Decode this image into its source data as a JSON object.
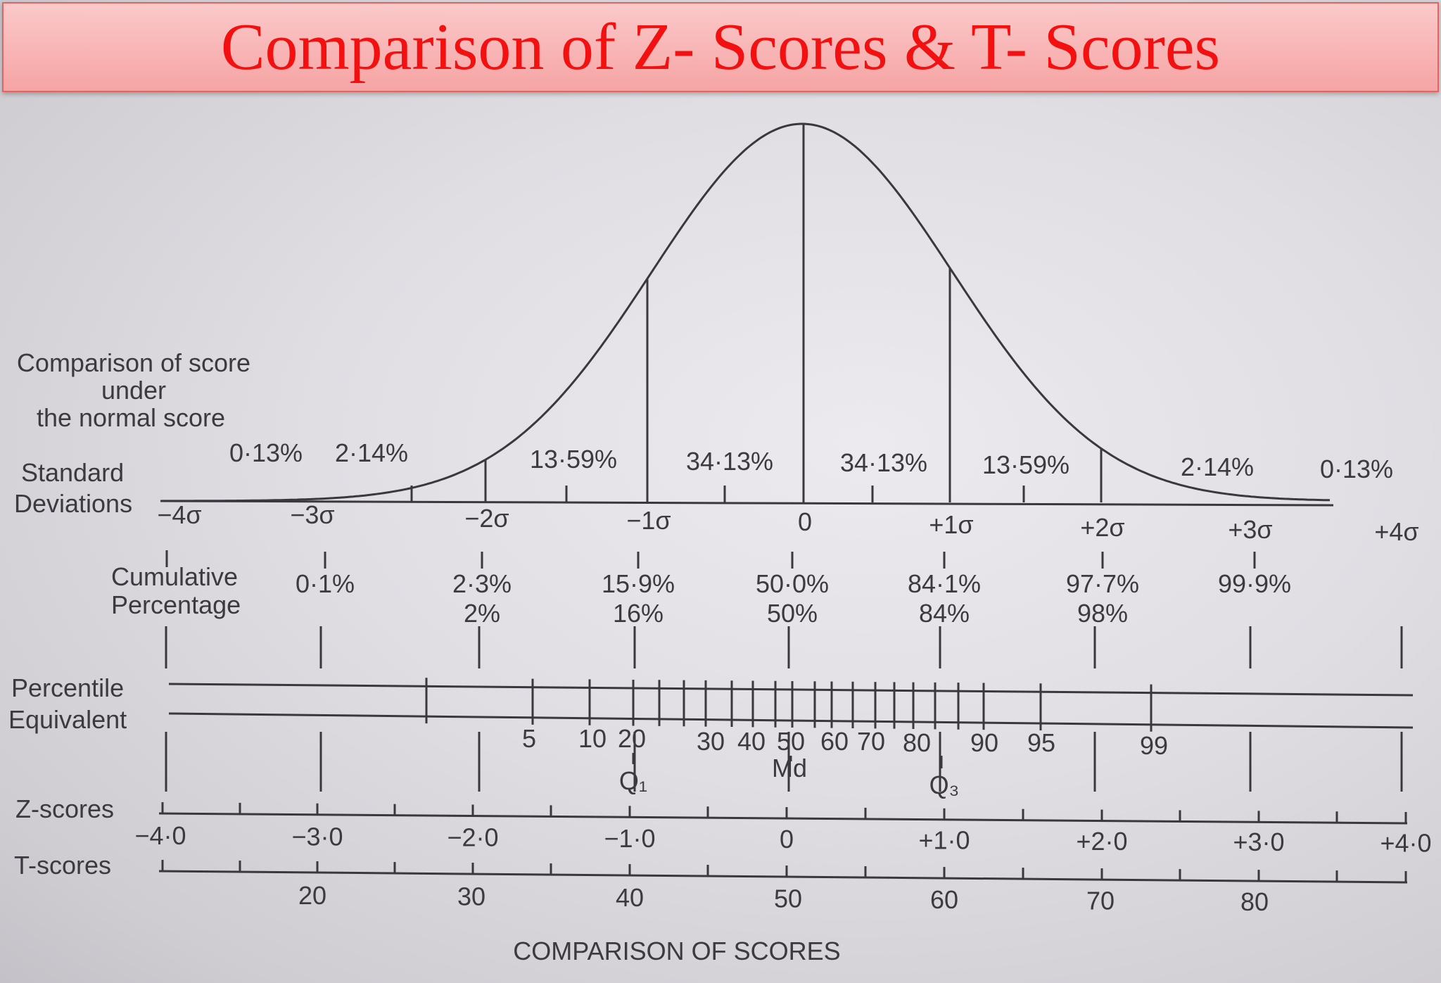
{
  "banner": {
    "title": "Comparison of Z- Scores & T- Scores"
  },
  "diagram": {
    "heading_lines": [
      "Comparison of score",
      "under",
      "the normal score"
    ],
    "row_labels": {
      "sd_line1": "Standard",
      "sd_line2": "Deviations",
      "cum_line1": "Cumulative",
      "cum_line2": "Percentage",
      "pct_line1": "Percentile",
      "pct_line2": "Equivalent",
      "z": "Z-scores",
      "t": "T-scores"
    },
    "area_percentages": [
      "0·13%",
      "2·14%",
      "13·59%",
      "34·13%",
      "34·13%",
      "13·59%",
      "2·14%",
      "0·13%"
    ],
    "sigma_labels": [
      "−4σ",
      "−3σ",
      "−2σ",
      "−1σ",
      "0",
      "+1σ",
      "+2σ",
      "+3σ",
      "+4σ"
    ],
    "cumulative": [
      {
        "value": "0·1%",
        "rounded": ""
      },
      {
        "value": "2·3%",
        "rounded": "2%"
      },
      {
        "value": "15·9%",
        "rounded": "16%"
      },
      {
        "value": "50·0%",
        "rounded": "50%"
      },
      {
        "value": "84·1%",
        "rounded": "84%"
      },
      {
        "value": "97·7%",
        "rounded": "98%"
      },
      {
        "value": "99·9%",
        "rounded": ""
      }
    ],
    "percentile_labels": [
      "5",
      "10",
      "20",
      "30",
      "40",
      "50",
      "60",
      "70",
      "80",
      "90",
      "95",
      "99"
    ],
    "quartile_labels": [
      "Q₁",
      "Md",
      "Q₃"
    ],
    "z_scores": [
      "−4·0",
      "−3·0",
      "−2·0",
      "−1·0",
      "0",
      "+1·0",
      "+2·0",
      "+3·0",
      "+4·0"
    ],
    "t_scores": [
      "20",
      "30",
      "40",
      "50",
      "60",
      "70",
      "80"
    ],
    "caption": "COMPARISON OF SCORES"
  }
}
